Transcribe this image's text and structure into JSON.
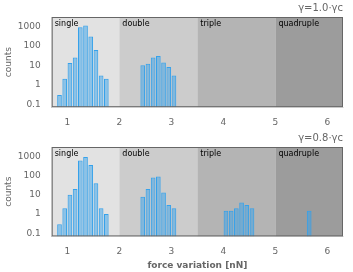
{
  "chart_data": [
    {
      "type": "bar",
      "title": "γ=1.0·γc",
      "ylabel": "counts",
      "x": [
        0.85,
        0.95,
        1.05,
        1.15,
        1.25,
        1.35,
        1.45,
        1.55,
        1.65,
        1.75,
        2.45,
        2.55,
        2.65,
        2.75,
        2.85,
        2.95,
        3.05
      ],
      "values": [
        0.3,
        2.0,
        13,
        25,
        900,
        1100,
        300,
        60,
        3,
        2,
        10,
        12,
        25,
        30,
        14,
        8,
        3
      ],
      "xlim": [
        0.7,
        6.3
      ],
      "xticks": [
        1,
        2,
        3,
        4,
        5,
        6
      ],
      "ylim": [
        0.07,
        3000
      ],
      "yticks": [
        0.1,
        1,
        10,
        100,
        1000
      ],
      "log": "y",
      "grid": false,
      "zones": [
        {
          "label": "single",
          "start": 0.7,
          "end": 2.0,
          "color": "#e2e2e2"
        },
        {
          "label": "double",
          "start": 2.0,
          "end": 3.5,
          "color": "#cccccc"
        },
        {
          "label": "triple",
          "start": 3.5,
          "end": 5.0,
          "color": "#b4b4b4"
        },
        {
          "label": "quadruple",
          "start": 5.0,
          "end": 6.3,
          "color": "#9c9c9c"
        }
      ]
    },
    {
      "type": "bar",
      "title": "γ=0.8·γc",
      "xlabel": "force variation [nN]",
      "ylabel": "counts",
      "x": [
        0.85,
        0.95,
        1.05,
        1.15,
        1.25,
        1.35,
        1.45,
        1.55,
        1.65,
        1.75,
        2.45,
        2.55,
        2.65,
        2.75,
        2.85,
        2.95,
        3.05,
        4.05,
        4.15,
        4.25,
        4.35,
        4.45,
        4.55,
        5.65
      ],
      "values": [
        0.3,
        2.0,
        10,
        20,
        600,
        900,
        350,
        40,
        2,
        1,
        8,
        20,
        80,
        90,
        13,
        3,
        2,
        1.5,
        1.5,
        2,
        4,
        3,
        2,
        1.5
      ],
      "xlim": [
        0.7,
        6.3
      ],
      "xticks": [
        1,
        2,
        3,
        4,
        5,
        6
      ],
      "ylim": [
        0.07,
        3000
      ],
      "yticks": [
        0.1,
        1,
        10,
        100,
        1000
      ],
      "log": "y",
      "grid": false,
      "zones": [
        {
          "label": "single",
          "start": 0.7,
          "end": 2.0,
          "color": "#e2e2e2"
        },
        {
          "label": "double",
          "start": 2.0,
          "end": 3.5,
          "color": "#cccccc"
        },
        {
          "label": "triple",
          "start": 3.5,
          "end": 5.0,
          "color": "#b4b4b4"
        },
        {
          "label": "quadruple",
          "start": 5.0,
          "end": 6.3,
          "color": "#9c9c9c"
        }
      ]
    }
  ]
}
